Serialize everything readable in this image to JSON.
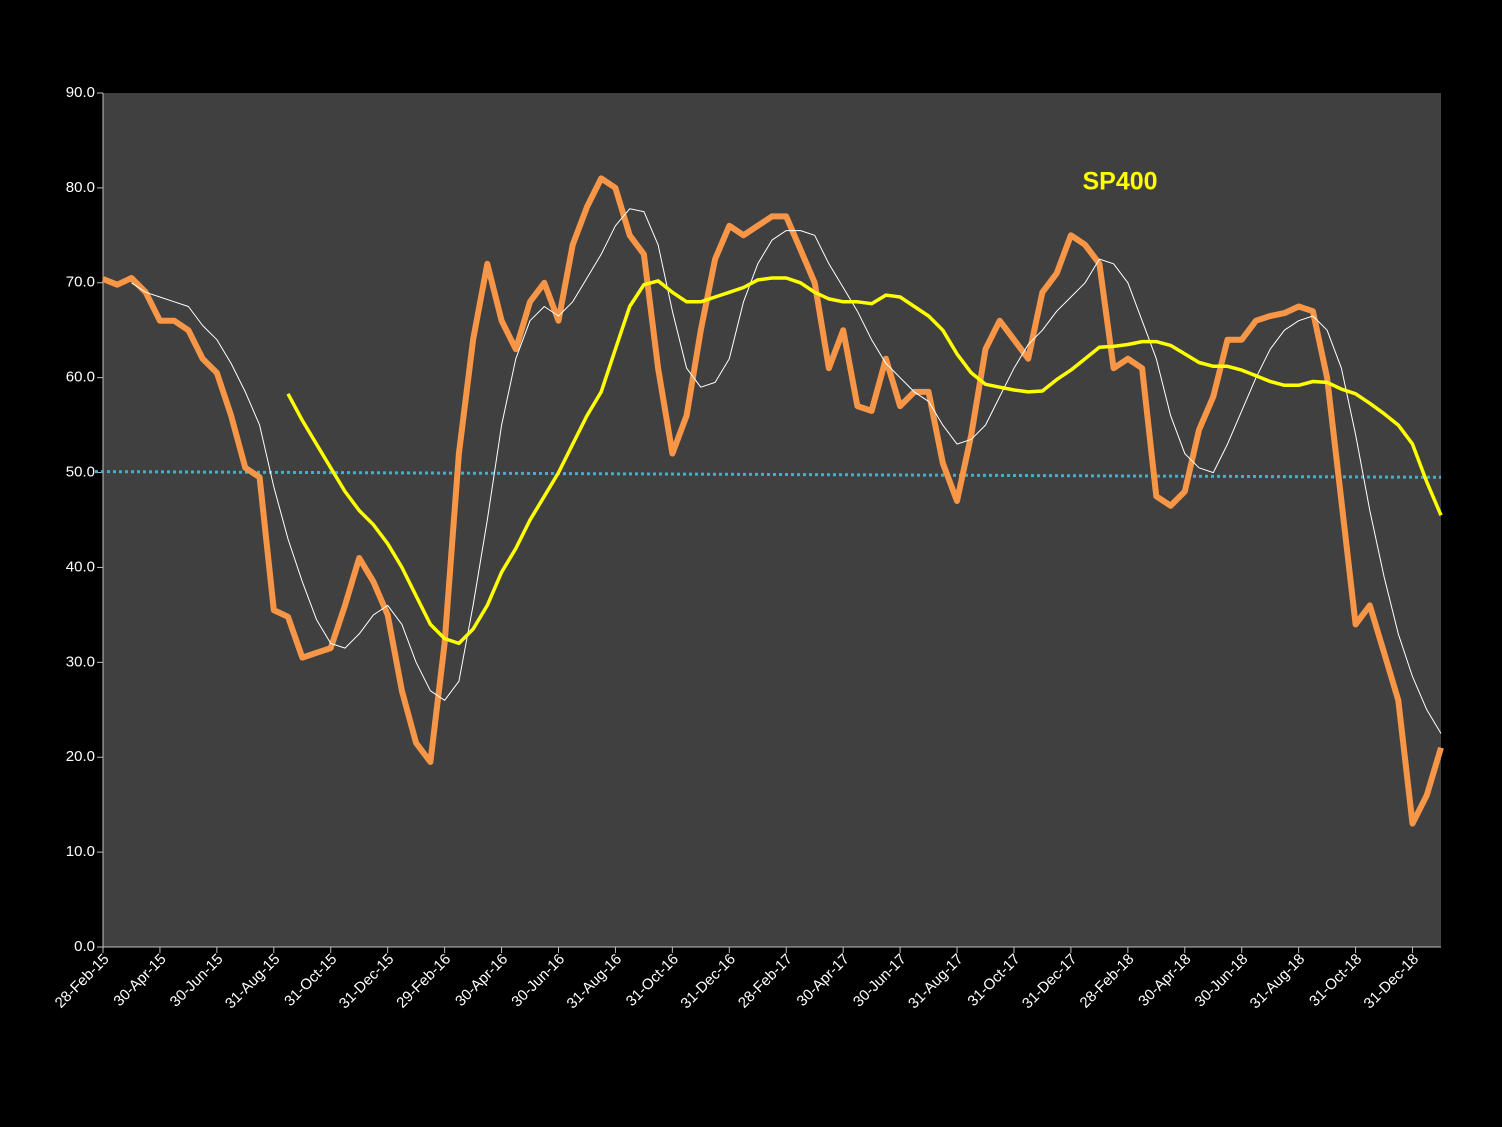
{
  "chart_data": {
    "type": "line",
    "annotation": "SP400",
    "annotation_color": "#ffff00",
    "categories": [
      "28-Feb-15",
      null,
      null,
      null,
      "30-Apr-15",
      null,
      null,
      null,
      "30-Jun-15",
      null,
      null,
      null,
      "31-Aug-15",
      null,
      null,
      null,
      "31-Oct-15",
      null,
      null,
      null,
      "31-Dec-15",
      null,
      null,
      null,
      "29-Feb-16",
      null,
      null,
      null,
      "30-Apr-16",
      null,
      null,
      null,
      "30-Jun-16",
      null,
      null,
      null,
      "31-Aug-16",
      null,
      null,
      null,
      "31-Oct-16",
      null,
      null,
      null,
      "31-Dec-16",
      null,
      null,
      null,
      "28-Feb-17",
      null,
      null,
      null,
      "30-Apr-17",
      null,
      null,
      null,
      "30-Jun-17",
      null,
      null,
      null,
      "31-Aug-17",
      null,
      null,
      null,
      "31-Oct-17",
      null,
      null,
      null,
      "31-Dec-17",
      null,
      null,
      null,
      "28-Feb-18",
      null,
      null,
      null,
      "30-Apr-18",
      null,
      null,
      null,
      "30-Jun-18",
      null,
      null,
      null,
      "31-Aug-18",
      null,
      null,
      null,
      "31-Oct-18",
      null,
      null,
      null,
      "31-Dec-18",
      null,
      null
    ],
    "series": [
      {
        "color": "#f79646",
        "width": 6,
        "values": [
          70.4,
          69.8,
          70.5,
          69,
          66,
          66,
          65,
          62,
          60.5,
          56,
          50.5,
          49.5,
          35.5,
          34.8,
          30.5,
          31,
          31.5,
          36,
          41,
          38.5,
          35,
          27,
          21.5,
          19.5,
          32,
          52,
          64,
          72,
          66,
          63,
          68,
          70,
          66,
          74,
          78,
          81,
          80,
          75,
          73,
          61,
          52,
          56,
          65,
          72.5,
          76,
          75,
          76,
          77,
          77,
          73.5,
          70,
          61,
          65,
          57,
          56.5,
          62,
          57,
          58.5,
          58.5,
          51,
          47,
          54,
          63,
          66,
          64,
          62,
          69,
          71,
          75,
          74,
          72,
          61,
          62,
          61,
          47.5,
          46.5,
          48,
          54.5,
          58,
          64,
          64,
          66,
          66.5,
          66.8,
          67.5,
          67,
          60,
          47,
          34,
          36,
          31,
          26,
          13,
          16,
          21
        ]
      },
      {
        "color": "#ffffff",
        "width": 1,
        "values": [
          null,
          null,
          70,
          69,
          68.5,
          68,
          67.5,
          65.5,
          64,
          61.5,
          58.5,
          55,
          48.5,
          43,
          38.5,
          34.5,
          32,
          31.5,
          33,
          35,
          36,
          34,
          30,
          27,
          26,
          28,
          36,
          45,
          55,
          62,
          66,
          67.5,
          66.5,
          68,
          70.5,
          73,
          76,
          77.8,
          77.5,
          74,
          67,
          61,
          59,
          59.5,
          62,
          68,
          72,
          74.5,
          75.5,
          75.5,
          75,
          72,
          69.5,
          67,
          64,
          61.5,
          60,
          58.5,
          57.5,
          55,
          53,
          53.5,
          55,
          58,
          61,
          63.5,
          65,
          67,
          68.5,
          70,
          72.5,
          72,
          70,
          66,
          62,
          56,
          52,
          50.5,
          50,
          53,
          56.5,
          60,
          63,
          65,
          66,
          66.5,
          65,
          61,
          54,
          46,
          39,
          33,
          28.5,
          25,
          22.5
        ]
      },
      {
        "color": "#ffff00",
        "width": 3.5,
        "values": [
          null,
          null,
          null,
          null,
          null,
          null,
          null,
          null,
          null,
          null,
          null,
          null,
          null,
          58.3,
          55.5,
          53,
          50.5,
          48,
          46,
          44.5,
          42.5,
          40,
          37,
          34,
          32.5,
          32,
          33.5,
          36,
          39.5,
          42,
          45,
          47.5,
          50,
          53,
          56,
          58.5,
          63,
          67.5,
          69.8,
          70.2,
          69,
          68,
          68,
          68.5,
          69,
          69.5,
          70.3,
          70.5,
          70.5,
          70,
          69,
          68.3,
          68,
          68,
          67.8,
          68.7,
          68.5,
          67.5,
          66.5,
          65,
          62.5,
          60.5,
          59.3,
          59,
          58.7,
          58.5,
          58.6,
          59.8,
          60.8,
          62,
          63.2,
          63.3,
          63.5,
          63.8,
          63.8,
          63.4,
          62.5,
          61.6,
          61.2,
          61.2,
          60.8,
          60.2,
          59.6,
          59.2,
          59.2,
          59.6,
          59.5,
          58.8,
          58.3,
          57.3,
          56.2,
          55,
          53,
          49,
          45.5
        ]
      }
    ],
    "trendline": {
      "color": "#4bacc6",
      "start": 50.1,
      "end": 49.5
    },
    "ylim": [
      0,
      90
    ],
    "yticks": [
      {
        "value": 0,
        "label": "0.0"
      },
      {
        "value": 10,
        "label": "10.0"
      },
      {
        "value": 20,
        "label": "20.0"
      },
      {
        "value": 30,
        "label": "30.0"
      },
      {
        "value": 40,
        "label": "40.0"
      },
      {
        "value": 50,
        "label": "50.0"
      },
      {
        "value": 60,
        "label": "60.0"
      },
      {
        "value": 70,
        "label": "70.0"
      },
      {
        "value": 80,
        "label": "80.0"
      },
      {
        "value": 90,
        "label": "90.0"
      }
    ],
    "plot_background": "#404040"
  }
}
